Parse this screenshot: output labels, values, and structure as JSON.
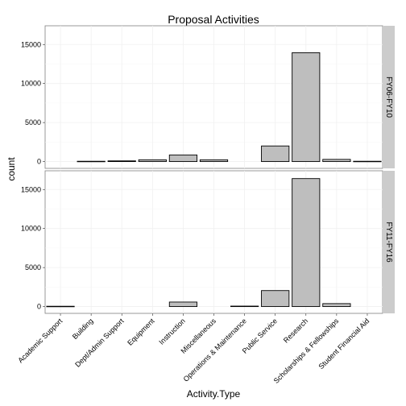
{
  "chart_data": {
    "type": "bar",
    "title": "Proposal Activities",
    "xlabel": "Activity.Type",
    "ylabel": "count",
    "categories": [
      "Academic Support",
      "Building",
      "Dept/Admin Support",
      "Equipment",
      "Instruction",
      "Miscellaneous",
      "Operations & Maintenance",
      "Public Service",
      "Research",
      "Scholarships & Fellowships",
      "Student Financial Aid"
    ],
    "ylim": [
      -870,
      17400
    ],
    "yticks": [
      0,
      5000,
      10000,
      15000
    ],
    "grid": true,
    "facets": [
      {
        "name": "FY06-FY10",
        "values": [
          null,
          40,
          90,
          230,
          850,
          230,
          null,
          2000,
          13950,
          280,
          40
        ]
      },
      {
        "name": "FY11-FY16",
        "values": [
          40,
          null,
          null,
          null,
          580,
          null,
          60,
          2050,
          16400,
          380,
          null
        ]
      }
    ],
    "colors": {
      "bar_fill": "#bebebe",
      "bar_stroke": "#000000",
      "panel_bg": "#ffffff",
      "grid_major": "#f0f0f0",
      "grid_minor": "#f7f7f7",
      "strip_bg": "#cccccc",
      "panel_border": "#7f7f7f"
    }
  }
}
